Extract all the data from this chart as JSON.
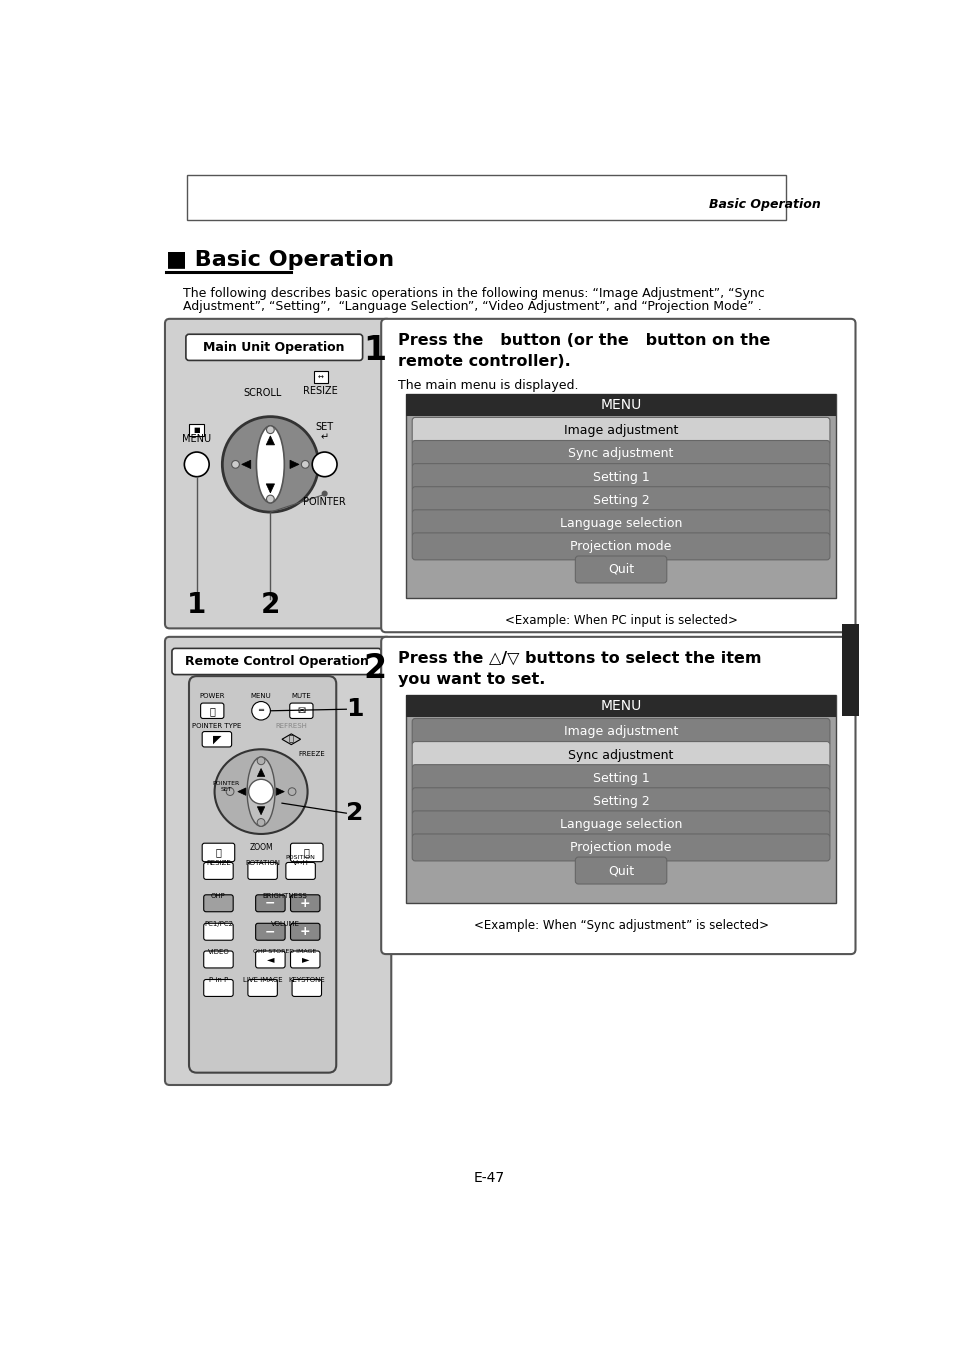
{
  "page_title_right": "Basic Operation",
  "section_title": "■ Basic Operation",
  "intro_line1": "The following describes basic operations in the following menus: “Image Adjustment”, “Sync",
  "intro_line2": "Adjustment”, “Setting”,  “Language Selection”, “Video Adjustment”, and “Projection Mode” .",
  "step1_num": "1",
  "step1_line1": "Press the   button (or the   button on the",
  "step1_line2": "remote controller).",
  "step1_sub": "The main menu is displayed.",
  "step1_caption": "<Example: When PC input is selected>",
  "step2_num": "2",
  "step2_line1": "Press the △/▽ buttons to select the item",
  "step2_line2": "you want to set.",
  "step2_caption": "<Example: When “Sync adjustment” is selected>",
  "menu_title": "MENU",
  "menu_items": [
    "Image adjustment",
    "Sync adjustment",
    "Setting 1",
    "Setting 2",
    "Language selection",
    "Projection mode",
    "Quit"
  ],
  "menu1_highlight": 0,
  "menu2_highlight": 1,
  "menu_title_bg": "#2a2a2a",
  "menu_title_color": "#ffffff",
  "menu_bg": "#a0a0a0",
  "menu_item_bg_light": "#d0d0d0",
  "menu_item_bg_dark": "#808080",
  "menu_item_text_light": "#000000",
  "menu_item_text_dark": "#ffffff",
  "panel_bg": "#d0d0d0",
  "page_num": "E-47",
  "bg_color": "#ffffff",
  "sidebar_color": "#222222"
}
